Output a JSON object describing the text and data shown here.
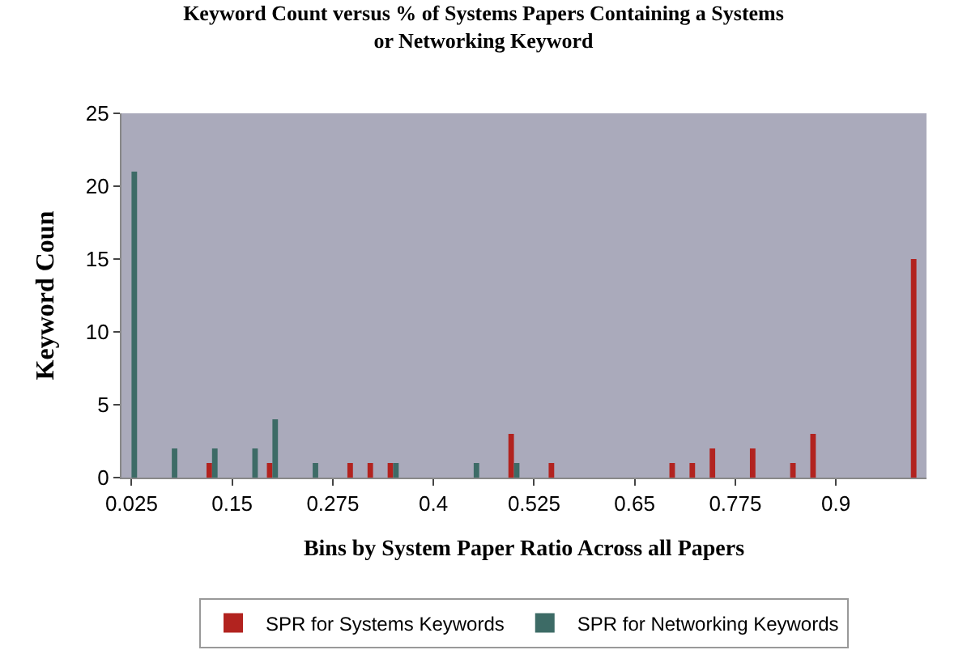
{
  "chart_data": {
    "type": "bar",
    "title": "Keyword Count versus % of Systems Papers Containing a Systems\nor Networking Keyword",
    "xlabel": "Bins by System Paper Ratio Across all Papers",
    "ylabel": "Keyword Coun",
    "categories": [
      "0.025",
      null,
      null,
      null,
      null,
      "0.15",
      null,
      null,
      null,
      null,
      "0.275",
      null,
      null,
      null,
      null,
      "0.4",
      null,
      null,
      null,
      null,
      "0.525",
      null,
      null,
      null,
      null,
      "0.65",
      null,
      null,
      null,
      null,
      "0.775",
      null,
      null,
      null,
      null,
      "0.9",
      null,
      null,
      null,
      null
    ],
    "series": [
      {
        "name": "SPR for Systems Keywords",
        "color": "#b2231f",
        "values": [
          null,
          null,
          null,
          null,
          1,
          null,
          null,
          1,
          null,
          null,
          null,
          1,
          1,
          1,
          null,
          null,
          null,
          null,
          null,
          3,
          null,
          1,
          null,
          null,
          null,
          null,
          null,
          1,
          1,
          2,
          null,
          2,
          null,
          1,
          3,
          null,
          null,
          null,
          null,
          15
        ]
      },
      {
        "name": "SPR for Networking Keywords",
        "color": "#3d6b66",
        "values": [
          21,
          null,
          2,
          null,
          2,
          null,
          2,
          4,
          null,
          1,
          null,
          null,
          null,
          1,
          null,
          null,
          null,
          1,
          null,
          1,
          null,
          null,
          null,
          null,
          null,
          null,
          null,
          null,
          null,
          null,
          null,
          null,
          null,
          null,
          null,
          null,
          null,
          null,
          null,
          null
        ]
      }
    ],
    "ylim": [
      0,
      25
    ],
    "yticks": [
      0,
      5,
      10,
      15,
      20,
      25
    ],
    "grid": false,
    "legend": "bottom"
  }
}
